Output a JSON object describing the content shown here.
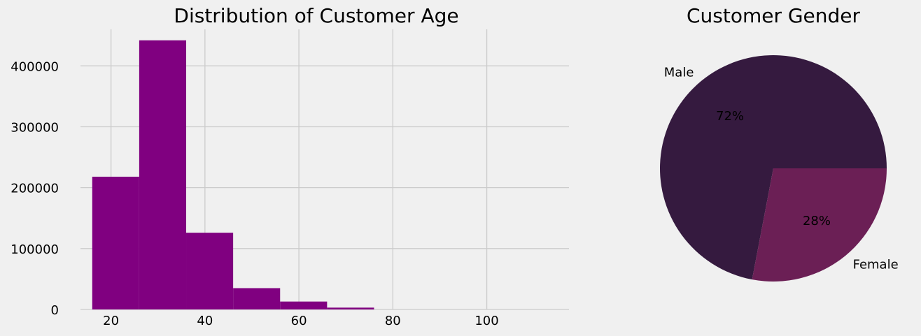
{
  "chart_data": [
    {
      "type": "bar",
      "title": "Distribution of Customer Age",
      "xlabel": "",
      "ylabel": "",
      "bin_edges": [
        16,
        26,
        36,
        46,
        56,
        66,
        76
      ],
      "values": [
        218000,
        442000,
        126000,
        35000,
        13000,
        3000
      ],
      "xlim": [
        13.5,
        117.5
      ],
      "ylim": [
        0,
        460000
      ],
      "xticks": [
        20,
        40,
        60,
        80,
        100
      ],
      "yticks": [
        0,
        100000,
        200000,
        300000,
        400000
      ],
      "grid": true,
      "color": "#800080"
    },
    {
      "type": "pie",
      "title": "Customer Gender",
      "slices": [
        {
          "label": "Male",
          "value": 72,
          "pct_label": "72%",
          "color": "#351a3f"
        },
        {
          "label": "Female",
          "value": 28,
          "pct_label": "28%",
          "color": "#6b1f55"
        }
      ]
    }
  ],
  "colors": {
    "background": "#f0f0f0",
    "grid": "#cbcbcb",
    "text": "#000000"
  }
}
